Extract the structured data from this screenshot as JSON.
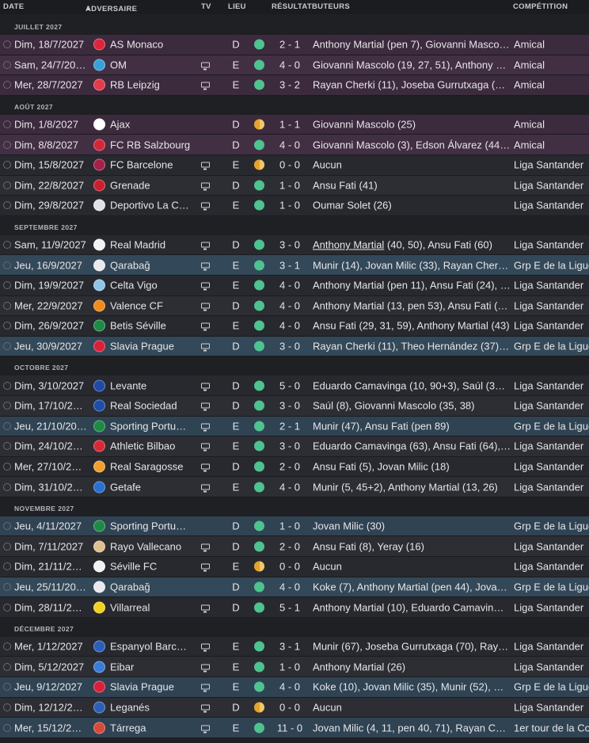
{
  "columns": {
    "date": "DATE",
    "opponent": "ADVERSAIRE",
    "tv": "TV",
    "venue": "LIEU",
    "result": "RÉSULTAT",
    "scorers": "BUTEURS",
    "competition": "COMPÉTITION"
  },
  "colors": {
    "win": "#4ec38f",
    "draw": "#e4a32e",
    "friendly_row": "#3c2a3d",
    "league_row": "#28292e",
    "euro_row": "#2f4353"
  },
  "months": [
    {
      "label": "JUILLET 2027",
      "matches": [
        {
          "date": "Dim, 18/7/2027",
          "opponent": "AS Monaco",
          "logo": "#d9263b",
          "tv": false,
          "venue": "D",
          "result": "win",
          "score": "2 - 1",
          "scorers": "Anthony Martial (pen 7), Giovanni Masco…",
          "competition": "Amical",
          "type": "friendly"
        },
        {
          "date": "Sam, 24/7/20…",
          "opponent": "OM",
          "logo": "#3aa0d8",
          "tv": true,
          "venue": "E",
          "result": "win",
          "score": "4 - 0",
          "scorers": "Giovanni Mascolo (19, 27, 51), Anthony M…",
          "competition": "Amical",
          "type": "friendly"
        },
        {
          "date": "Mer, 28/7/2027",
          "opponent": "RB Leipzig",
          "logo": "#e23b4a",
          "tv": true,
          "venue": "E",
          "result": "win",
          "score": "3 - 2",
          "scorers": "Rayan Cherki (11), Joseba Gurrutxaga (2…",
          "competition": "Amical",
          "type": "friendly"
        }
      ]
    },
    {
      "label": "AOÛT 2027",
      "matches": [
        {
          "date": "Dim, 1/8/2027",
          "opponent": "Ajax",
          "logo": "#ffffff",
          "tv": false,
          "venue": "D",
          "result": "draw",
          "score": "1 - 1",
          "scorers": "Giovanni Mascolo (25)",
          "competition": "Amical",
          "type": "friendly"
        },
        {
          "date": "Dim, 8/8/2027",
          "opponent": "FC RB Salzbourg",
          "logo": "#d2283a",
          "tv": false,
          "venue": "D",
          "result": "win",
          "score": "4 - 0",
          "scorers": "Giovanni Mascolo (3), Edson Álvarez (44…",
          "competition": "Amical",
          "type": "friendly"
        },
        {
          "date": "Dim, 15/8/2027",
          "opponent": "FC Barcelone",
          "logo": "#a2214b",
          "tv": true,
          "venue": "E",
          "result": "draw",
          "score": "0 - 0",
          "scorers": "Aucun",
          "competition": "Liga Santander",
          "type": "league"
        },
        {
          "date": "Dim, 22/8/2027",
          "opponent": "Grenade",
          "logo": "#c8202f",
          "tv": true,
          "venue": "D",
          "result": "win",
          "score": "1 - 0",
          "scorers": "Ansu Fati (41)",
          "competition": "Liga Santander",
          "type": "league"
        },
        {
          "date": "Dim, 29/8/2027",
          "opponent": "Deportivo La C…",
          "logo": "#e0e0e6",
          "tv": true,
          "venue": "E",
          "result": "win",
          "score": "1 - 0",
          "scorers": "Oumar Solet (26)",
          "competition": "Liga Santander",
          "type": "league"
        }
      ]
    },
    {
      "label": "SEPTEMBRE 2027",
      "matches": [
        {
          "date": "Sam, 11/9/2027",
          "opponent": "Real Madrid",
          "logo": "#f2f2f2",
          "tv": true,
          "venue": "D",
          "result": "win",
          "score": "3 - 0",
          "scorers": "Anthony Martial (40, 50), Ansu Fati (60)",
          "competition": "Liga Santander",
          "type": "league",
          "underline": "Anthony Martial"
        },
        {
          "date": "Jeu, 16/9/2027",
          "opponent": "Qarabağ",
          "logo": "#e9e9ee",
          "tv": true,
          "venue": "E",
          "result": "win",
          "score": "3 - 1",
          "scorers": "Munir (14), Jovan Milic (33), Rayan Cherki…",
          "competition": "Grp E de la Ligue",
          "type": "euro"
        },
        {
          "date": "Dim, 19/9/2027",
          "opponent": "Celta Vigo",
          "logo": "#8fc6e8",
          "tv": true,
          "venue": "E",
          "result": "win",
          "score": "4 - 0",
          "scorers": "Anthony Martial (pen 11), Ansu Fati (24), S…",
          "competition": "Liga Santander",
          "type": "league"
        },
        {
          "date": "Mer, 22/9/2027",
          "opponent": "Valence CF",
          "logo": "#f08a1c",
          "tv": true,
          "venue": "D",
          "result": "win",
          "score": "4 - 0",
          "scorers": "Anthony Martial (13, pen 53), Ansu Fati (2…",
          "competition": "Liga Santander",
          "type": "league"
        },
        {
          "date": "Dim, 26/9/2027",
          "opponent": "Betis Séville",
          "logo": "#1e8a45",
          "tv": true,
          "venue": "E",
          "result": "win",
          "score": "4 - 0",
          "scorers": "Ansu Fati (29, 31, 59), Anthony Martial (43)",
          "competition": "Liga Santander",
          "type": "league"
        },
        {
          "date": "Jeu, 30/9/2027",
          "opponent": "Slavia Prague",
          "logo": "#d9203a",
          "tv": true,
          "venue": "D",
          "result": "win",
          "score": "3 - 0",
          "scorers": "Rayan Cherki (11), Theo Hernández (37), J…",
          "competition": "Grp E de la Ligue",
          "type": "euro"
        }
      ]
    },
    {
      "label": "OCTOBRE 2027",
      "matches": [
        {
          "date": "Dim, 3/10/2027",
          "opponent": "Levante",
          "logo": "#1f4aa6",
          "tv": true,
          "venue": "D",
          "result": "win",
          "score": "5 - 0",
          "scorers": "Eduardo Camavinga (10, 90+3), Saúl (38)…",
          "competition": "Liga Santander",
          "type": "league"
        },
        {
          "date": "Dim, 17/10/20…",
          "opponent": "Real Sociedad",
          "logo": "#1e4ea8",
          "tv": true,
          "venue": "D",
          "result": "win",
          "score": "3 - 0",
          "scorers": "Saúl (8), Giovanni Mascolo (35, 38)",
          "competition": "Liga Santander",
          "type": "league"
        },
        {
          "date": "Jeu, 21/10/20…",
          "opponent": "Sporting Portu…",
          "logo": "#1e8a45",
          "tv": true,
          "venue": "E",
          "result": "win",
          "score": "2 - 1",
          "scorers": "Munir (47), Ansu Fati (pen 89)",
          "competition": "Grp E de la Ligue",
          "type": "euro"
        },
        {
          "date": "Dim, 24/10/2…",
          "opponent": "Athletic Bilbao",
          "logo": "#d62a36",
          "tv": true,
          "venue": "E",
          "result": "win",
          "score": "3 - 0",
          "scorers": "Eduardo Camavinga (63), Ansu Fati (64),…",
          "competition": "Liga Santander",
          "type": "league"
        },
        {
          "date": "Mer, 27/10/20…",
          "opponent": "Real Saragosse",
          "logo": "#f0a030",
          "tv": true,
          "venue": "D",
          "result": "win",
          "score": "2 - 0",
          "scorers": "Ansu Fati (5), Jovan Milic (18)",
          "competition": "Liga Santander",
          "type": "league"
        },
        {
          "date": "Dim, 31/10/20…",
          "opponent": "Getafe",
          "logo": "#2a6fd1",
          "tv": true,
          "venue": "E",
          "result": "win",
          "score": "4 - 0",
          "scorers": "Munir (5, 45+2), Anthony Martial (13, 26)",
          "competition": "Liga Santander",
          "type": "league"
        }
      ]
    },
    {
      "label": "NOVEMBRE 2027",
      "matches": [
        {
          "date": "Jeu, 4/11/2027",
          "opponent": "Sporting Portu…",
          "logo": "#1e8a45",
          "tv": false,
          "venue": "D",
          "result": "win",
          "score": "1 - 0",
          "scorers": "Jovan Milic (30)",
          "competition": "Grp E de la Ligue",
          "type": "euro"
        },
        {
          "date": "Dim, 7/11/2027",
          "opponent": "Rayo Vallecano",
          "logo": "#e0c090",
          "tv": true,
          "venue": "D",
          "result": "win",
          "score": "2 - 0",
          "scorers": "Ansu Fati (8), Yeray (16)",
          "competition": "Liga Santander",
          "type": "league"
        },
        {
          "date": "Dim, 21/11/20…",
          "opponent": "Séville FC",
          "logo": "#f2f2f2",
          "tv": true,
          "venue": "E",
          "result": "draw",
          "score": "0 - 0",
          "scorers": "Aucun",
          "competition": "Liga Santander",
          "type": "league"
        },
        {
          "date": "Jeu, 25/11/2027",
          "opponent": "Qarabağ",
          "logo": "#e9e9ee",
          "tv": false,
          "venue": "D",
          "result": "win",
          "score": "4 - 0",
          "scorers": "Koke (7), Anthony Martial (pen 44), Jova…",
          "competition": "Grp E de la Ligue",
          "type": "euro"
        },
        {
          "date": "Dim, 28/11/20…",
          "opponent": "Villarreal",
          "logo": "#f2d020",
          "tv": true,
          "venue": "D",
          "result": "win",
          "score": "5 - 1",
          "scorers": "Anthony Martial (10), Eduardo Camavin…",
          "competition": "Liga Santander",
          "type": "league"
        }
      ]
    },
    {
      "label": "DÉCEMBRE 2027",
      "matches": [
        {
          "date": "Mer, 1/12/2027",
          "opponent": "Espanyol Barce…",
          "logo": "#2c5fb8",
          "tv": true,
          "venue": "E",
          "result": "win",
          "score": "3 - 1",
          "scorers": "Munir (67), Joseba Gurrutxaga (70), Ray…",
          "competition": "Liga Santander",
          "type": "league"
        },
        {
          "date": "Dim, 5/12/2027",
          "opponent": "Eibar",
          "logo": "#3a7dd8",
          "tv": true,
          "venue": "E",
          "result": "win",
          "score": "1 - 0",
          "scorers": "Anthony Martial (26)",
          "competition": "Liga Santander",
          "type": "league"
        },
        {
          "date": "Jeu, 9/12/2027",
          "opponent": "Slavia Prague",
          "logo": "#d9203a",
          "tv": true,
          "venue": "E",
          "result": "win",
          "score": "4 - 0",
          "scorers": "Koke (10), Jovan Milic (35), Munir (52), Ra…",
          "competition": "Grp E de la Ligue",
          "type": "euro"
        },
        {
          "date": "Dim, 12/12/20…",
          "opponent": "Leganés",
          "logo": "#2e5fb5",
          "tv": true,
          "venue": "D",
          "result": "draw",
          "score": "0 - 0",
          "scorers": "Aucun",
          "competition": "Liga Santander",
          "type": "league"
        },
        {
          "date": "Mer, 15/12/20…",
          "opponent": "Tárrega",
          "logo": "#d64a3a",
          "tv": true,
          "venue": "E",
          "result": "win",
          "score": "11 - 0",
          "scorers": "Jovan Milic (4, 11, pen 40, 71), Rayan Cher…",
          "competition": "1er tour de la Co",
          "type": "euro"
        }
      ]
    }
  ]
}
